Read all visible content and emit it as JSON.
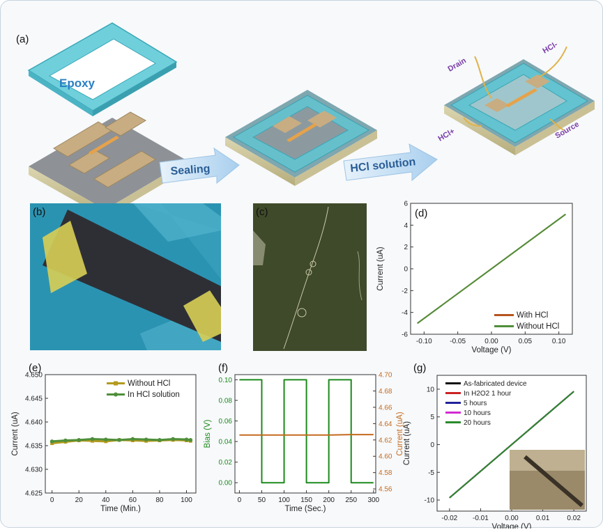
{
  "panel_a": {
    "label": "(a)",
    "epoxy": "Epoxy",
    "sealing": "Sealing",
    "hcl_solution": "HCl solution",
    "drain": "Drain",
    "source": "Source",
    "hcl_minus": "HCl-",
    "hcl_plus": "HCl+"
  },
  "panel_b": {
    "label": "(b)"
  },
  "panel_c": {
    "label": "(c)"
  },
  "colors": {
    "device_green": "#4f8f3a",
    "hcl_orange": "#b5561f",
    "bias_green": "#1c8a1c",
    "current_orange": "#c46a1e",
    "epoxy_cyan": "#5fc8d6"
  },
  "chart_data": [
    {
      "id": "d",
      "label": "(d)",
      "type": "line",
      "xlabel": "Voltage (V)",
      "ylabel": "Current (uA)",
      "xlim": [
        -0.12,
        0.12
      ],
      "ylim": [
        -6,
        6
      ],
      "xticks": [
        "-0.10",
        "-0.05",
        "0.00",
        "0.05",
        "0.10"
      ],
      "yticks": [
        "-6",
        "-4",
        "-2",
        "0",
        "2",
        "4",
        "6"
      ],
      "series": [
        {
          "name": "With HCl",
          "color": "#b5561f",
          "x": [
            -0.11,
            0.11
          ],
          "y": [
            -5.0,
            5.0
          ]
        },
        {
          "name": "Without HCl",
          "color": "#4f8f3a",
          "x": [
            -0.11,
            0.11
          ],
          "y": [
            -5.0,
            5.0
          ]
        }
      ]
    },
    {
      "id": "e",
      "label": "(e)",
      "type": "line",
      "xlabel": "Time (Min.)",
      "ylabel": "Current (uA)",
      "xlim": [
        -5,
        107
      ],
      "ylim": [
        4.625,
        4.65
      ],
      "xticks": [
        "0",
        "20",
        "40",
        "60",
        "80",
        "100"
      ],
      "yticks": [
        "4.625",
        "4.630",
        "4.635",
        "4.640",
        "4.645",
        "4.650"
      ],
      "series": [
        {
          "name": "Without HCl",
          "color": "#b39a1f",
          "x": [
            0,
            10,
            20,
            30,
            40,
            50,
            60,
            70,
            80,
            90,
            100,
            103
          ],
          "y": [
            4.6355,
            4.6358,
            4.6361,
            4.636,
            4.6359,
            4.6362,
            4.6361,
            4.636,
            4.6361,
            4.6362,
            4.6361,
            4.636
          ]
        },
        {
          "name": "In HCl solution",
          "color": "#4f8f3a",
          "x": [
            0,
            10,
            20,
            30,
            40,
            50,
            60,
            70,
            80,
            90,
            100,
            103
          ],
          "y": [
            4.6359,
            4.6361,
            4.6362,
            4.6364,
            4.6363,
            4.6362,
            4.6364,
            4.6363,
            4.6362,
            4.6364,
            4.6363,
            4.6362
          ]
        }
      ]
    },
    {
      "id": "f",
      "label": "(f)",
      "type": "line",
      "xlabel": "Time (Sec.)",
      "ylabel": "Bias (V)",
      "y2label": "Current (uA)",
      "xlim": [
        -10,
        305
      ],
      "ylim": [
        -0.01,
        0.105
      ],
      "y2lim": [
        4.555,
        4.7
      ],
      "xticks": [
        "0",
        "50",
        "100",
        "150",
        "200",
        "250",
        "300"
      ],
      "yticks": [
        "0.00",
        "0.02",
        "0.04",
        "0.06",
        "0.08",
        "0.10"
      ],
      "y2ticks": [
        "4.56",
        "4.58",
        "4.60",
        "4.62",
        "4.64",
        "4.66",
        "4.68",
        "4.70"
      ],
      "series": [
        {
          "name": "Bias",
          "color": "#1c8a1c",
          "axis": "left",
          "x": [
            0,
            50,
            50,
            100,
            100,
            150,
            150,
            200,
            200,
            250,
            250,
            300
          ],
          "y": [
            0.1,
            0.1,
            0.0,
            0.0,
            0.1,
            0.1,
            0.0,
            0.0,
            0.1,
            0.1,
            0.0,
            0.0
          ]
        },
        {
          "name": "Current",
          "color": "#c46a1e",
          "axis": "right",
          "x": [
            0,
            50,
            100,
            150,
            200,
            250,
            300
          ],
          "y": [
            4.626,
            4.626,
            4.626,
            4.626,
            4.626,
            4.6265,
            4.6265
          ]
        }
      ]
    },
    {
      "id": "g",
      "label": "(g)",
      "type": "line",
      "xlabel": "Voltage (V)",
      "ylabel": "Current (uA)",
      "xlim": [
        -0.024,
        0.024
      ],
      "ylim": [
        -12,
        12.5
      ],
      "xticks": [
        "-0.02",
        "-0.01",
        "0.00",
        "0.01",
        "0.02"
      ],
      "yticks": [
        "-10",
        "-5",
        "0",
        "5",
        "10"
      ],
      "series": [
        {
          "name": "As-fabricated device",
          "color": "#111111",
          "x": [
            -0.02,
            0.02
          ],
          "y": [
            -9.6,
            9.6
          ]
        },
        {
          "name": "In H2O2 1 hour",
          "color": "#cc2222",
          "x": [
            -0.02,
            0.02
          ],
          "y": [
            -9.6,
            9.6
          ]
        },
        {
          "name": "5 hours",
          "color": "#22229a",
          "x": [
            -0.02,
            0.02
          ],
          "y": [
            -9.6,
            9.6
          ]
        },
        {
          "name": "10 hours",
          "color": "#d12bd1",
          "x": [
            -0.02,
            0.02
          ],
          "y": [
            -9.6,
            9.6
          ]
        },
        {
          "name": "20 hours",
          "color": "#2a8a2a",
          "x": [
            -0.02,
            0.02
          ],
          "y": [
            -9.6,
            9.6
          ]
        }
      ]
    }
  ]
}
